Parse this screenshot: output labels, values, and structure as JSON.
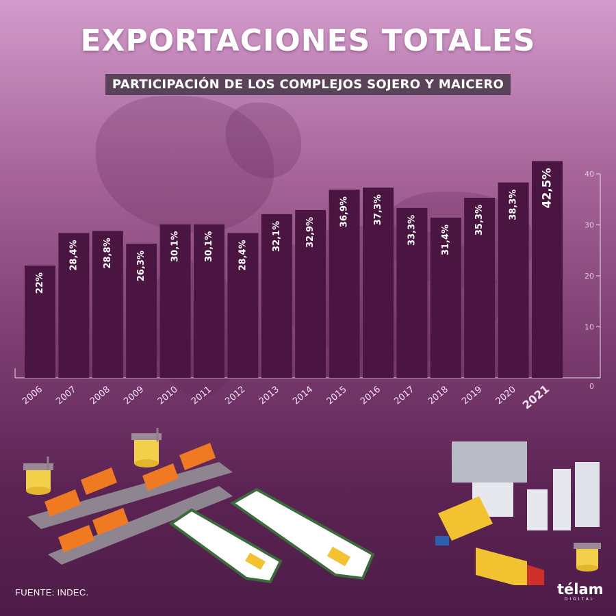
{
  "header": {
    "title": "EXPORTACIONES TOTALES",
    "subtitle": "PARTICIPACIÓN DE LOS COMPLEJOS SOJERO Y MAICERO"
  },
  "footer": {
    "source": "FUENTE: INDEC.",
    "logo_main": "télam",
    "logo_sub": "DIGITAL"
  },
  "colors": {
    "bar": "#4a1540",
    "bar_label": "#ffffff",
    "axis": "#f0dcee",
    "year_label": "#f5e4f2"
  },
  "icons": [
    "train-wagons-illustration",
    "silo-icon",
    "cargo-ship-illustration",
    "grain-plant-illustration",
    "truck-illustration",
    "tractor-illustration"
  ],
  "chart_data": {
    "type": "bar",
    "categories": [
      "2006",
      "2007",
      "2008",
      "2009",
      "2010",
      "2011",
      "2012",
      "2013",
      "2014",
      "2015",
      "2016",
      "2017",
      "2018",
      "2019",
      "2020",
      "2021"
    ],
    "values": [
      22,
      28.4,
      28.8,
      26.3,
      30.1,
      30.1,
      28.4,
      32.1,
      32.9,
      36.9,
      37.3,
      33.3,
      31.4,
      35.3,
      38.3,
      42.5
    ],
    "data_labels": [
      "22%",
      "28,4%",
      "28,8%",
      "26,3%",
      "30,1%",
      "30,1%",
      "28,4%",
      "32,1%",
      "32,9%",
      "36,9%",
      "37,3%",
      "33,3%",
      "31,4%",
      "35,3%",
      "38,3%",
      "42,5%"
    ],
    "highlight_category": "2021",
    "y_ticks": [
      "0",
      "10",
      "20",
      "30",
      "40"
    ],
    "ylim": [
      0,
      40
    ],
    "grid": false,
    "title": "EXPORTACIONES TOTALES",
    "subtitle": "PARTICIPACIÓN DE LOS COMPLEJOS SOJERO Y MAICERO",
    "xlabel": "",
    "ylabel": ""
  }
}
